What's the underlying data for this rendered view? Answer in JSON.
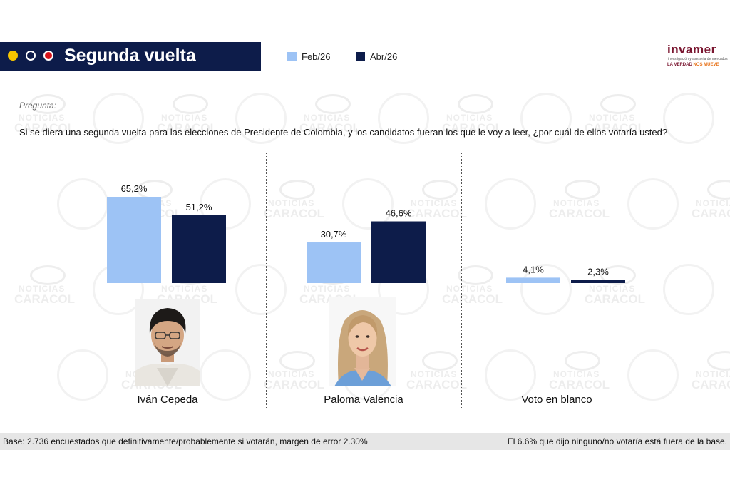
{
  "header": {
    "title": "Segunda vuelta",
    "dot_colors": [
      "#f5c400",
      "#0d1c4a",
      "#d6131a"
    ]
  },
  "brand": {
    "name": "invamer",
    "subtitle": "investigación y asesoría de mercados",
    "tagline_a": "LA VERDAD",
    "tagline_b": "NOS MUEVE"
  },
  "watermark": {
    "noticias": "NOTICIAS",
    "caracol": "CARACOL"
  },
  "question": {
    "label": "Pregunta:",
    "text": "Si se diera una segunda vuelta para las elecciones de Presidente de Colombia, y los candidatos fueran los que le voy a leer, ¿por cuál de ellos votaría usted?"
  },
  "chart_data": {
    "type": "bar",
    "categories": [
      "Iván Cepeda",
      "Paloma Valencia",
      "Voto en blanco"
    ],
    "series": [
      {
        "name": "Feb/26",
        "color": "#9dc3f5",
        "values": [
          65.2,
          30.7,
          4.1
        ],
        "labels": [
          "65,2%",
          "30,7%",
          "4,1%"
        ]
      },
      {
        "name": "Abr/26",
        "color": "#0d1c4a",
        "values": [
          51.2,
          46.6,
          2.3
        ],
        "labels": [
          "51,2%",
          "46,6%",
          "2,3%"
        ]
      }
    ],
    "title": "",
    "xlabel": "",
    "ylabel": "",
    "ylim": [
      0,
      70
    ],
    "grid": false,
    "legend": "top"
  },
  "footer": {
    "left": "Base: 2.736 encuestados que definitivamente/probablemente si votarán, margen de error 2.30%",
    "right": "El 6.6% que dijo ninguno/no votaría está fuera de la base."
  }
}
